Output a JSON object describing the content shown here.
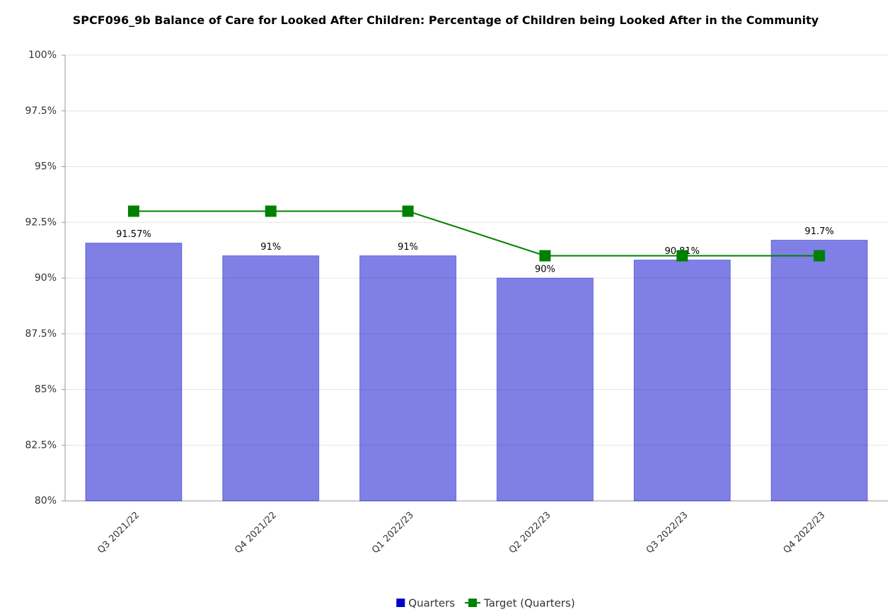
{
  "chart_data": {
    "type": "bar",
    "title": "SPCF096_9b Balance of Care for Looked After Children: Percentage of Children being Looked After in the Community",
    "categories": [
      "Q3 2021/22",
      "Q4 2021/22",
      "Q1 2022/23",
      "Q2 2022/23",
      "Q3 2022/23",
      "Q4 2022/23"
    ],
    "series": [
      {
        "name": "Quarters",
        "color": "#0000cc",
        "values": [
          91.57,
          91,
          91,
          90,
          90.81,
          91.7
        ],
        "value_labels": [
          "91.57%",
          "91%",
          "91%",
          "90%",
          "90.81%",
          "91.7%"
        ]
      },
      {
        "name": "Target (Quarters)",
        "type": "line",
        "color": "#008000",
        "values": [
          93,
          93,
          93,
          91,
          91,
          91
        ]
      }
    ],
    "ylim": [
      80,
      100
    ],
    "yticks": [
      {
        "value": 80,
        "label": "80%"
      },
      {
        "value": 82.5,
        "label": "82.5%"
      },
      {
        "value": 85,
        "label": "85%"
      },
      {
        "value": 87.5,
        "label": "87.5%"
      },
      {
        "value": 90,
        "label": "90%"
      },
      {
        "value": 92.5,
        "label": "92.5%"
      },
      {
        "value": 95,
        "label": "95%"
      },
      {
        "value": 97.5,
        "label": "97.5%"
      },
      {
        "value": 100,
        "label": "100%"
      }
    ],
    "grid": true,
    "legend": "bottom"
  }
}
